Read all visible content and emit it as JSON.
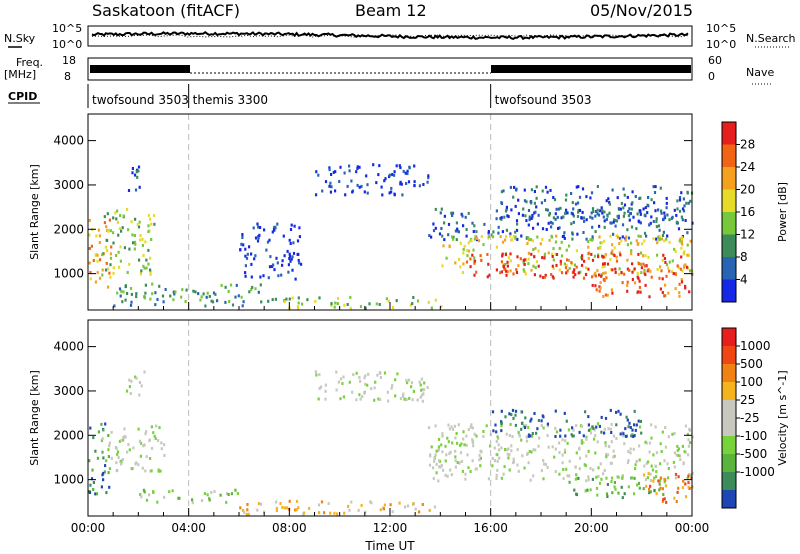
{
  "header": {
    "station": "Saskatoon (fitACF)",
    "beam": "Beam 12",
    "date": "05/Nov/2015"
  },
  "strip_labels": {
    "nsky": "N.Sky",
    "nsearch": "N.Search",
    "freq": "Freq.",
    "freq_unit": "[MHz]",
    "nave": "Nave",
    "cpid": "CPID",
    "nsky_top": "10^5",
    "nsky_bottom": "10^0",
    "nsearch_top": "10^5",
    "nsearch_bottom": "10^0",
    "freq_top": "18",
    "freq_bottom": "8",
    "nave_top": "60",
    "nave_bottom": "0"
  },
  "cpid_segments": [
    {
      "label": "twofsound 3503",
      "start_hour": 0,
      "end_hour": 4
    },
    {
      "label": "themis 3300",
      "start_hour": 4,
      "end_hour": 16
    },
    {
      "label": "twofsound 3503",
      "start_hour": 16,
      "end_hour": 24
    }
  ],
  "chart_data": [
    {
      "type": "heatmap",
      "panel": "power",
      "xlabel": "",
      "ylabel": "Slant Range [km]",
      "xlim": [
        0,
        24
      ],
      "ylim": [
        180,
        4600
      ],
      "yticks": [
        "1000",
        "2000",
        "3000",
        "4000"
      ],
      "xticks": [
        "00:00",
        "04:00",
        "08:00",
        "12:00",
        "16:00",
        "20:00",
        "00:00"
      ],
      "colorbar": {
        "label": "Power [dB]",
        "ticks": [
          "4",
          "8",
          "12",
          "16",
          "20",
          "24",
          "28"
        ],
        "colors": [
          "#1428e6",
          "#2864b4",
          "#3c8c5a",
          "#78c83c",
          "#e6dc28",
          "#f5a01e",
          "#f06414",
          "#e61e1e"
        ]
      },
      "regions": [
        {
          "t0": 0.0,
          "t1": 0.9,
          "r0": 700,
          "r1": 2300,
          "level": 5
        },
        {
          "t0": 0.5,
          "t1": 2.6,
          "r0": 1000,
          "r1": 2500,
          "level": 3
        },
        {
          "t0": 1.5,
          "t1": 2.2,
          "r0": 2900,
          "r1": 3500,
          "level": 1
        },
        {
          "t0": 1.0,
          "t1": 7.0,
          "r0": 300,
          "r1": 800,
          "level": 2
        },
        {
          "t0": 6.0,
          "t1": 8.5,
          "r0": 900,
          "r1": 2200,
          "level": 0
        },
        {
          "t0": 7.0,
          "t1": 14.0,
          "r0": 250,
          "r1": 500,
          "level": 3
        },
        {
          "t0": 9.0,
          "t1": 13.5,
          "r0": 2800,
          "r1": 3500,
          "level": 0
        },
        {
          "t0": 13.5,
          "t1": 24.0,
          "r0": 1800,
          "r1": 2500,
          "level": 1
        },
        {
          "t0": 14.0,
          "t1": 24.0,
          "r0": 1000,
          "r1": 1900,
          "level": 4
        },
        {
          "t0": 15.0,
          "t1": 24.0,
          "r0": 900,
          "r1": 1500,
          "level": 7
        },
        {
          "t0": 20.0,
          "t1": 24.0,
          "r0": 500,
          "r1": 900,
          "level": 6
        },
        {
          "t0": 16.0,
          "t1": 24.0,
          "r0": 2200,
          "r1": 3000,
          "level": 1
        }
      ]
    },
    {
      "type": "heatmap",
      "panel": "velocity",
      "xlabel": "Time UT",
      "ylabel": "Slant Range [km]",
      "xlim": [
        0,
        24
      ],
      "ylim": [
        180,
        4600
      ],
      "yticks": [
        "1000",
        "2000",
        "3000",
        "4000"
      ],
      "xticks": [
        "00:00",
        "04:00",
        "08:00",
        "12:00",
        "16:00",
        "20:00",
        "00:00"
      ],
      "colorbar": {
        "label": "Velocity [m s^-1]",
        "ticks": [
          "1000",
          "500",
          "100",
          "25",
          "-25",
          "-100",
          "-500",
          "-1000"
        ],
        "colors": [
          "#1e46b4",
          "#3c8c5a",
          "#5ab43c",
          "#78d23c",
          "#c8c8c0",
          "#c8c8c0",
          "#f5b41e",
          "#f08214",
          "#f04614",
          "#e61e1e"
        ]
      },
      "regions": [
        {
          "t0": 0.0,
          "t1": 0.8,
          "r0": 700,
          "r1": 2300,
          "level": 1
        },
        {
          "t0": 0.5,
          "t1": 3.0,
          "r0": 1200,
          "r1": 2300,
          "level": 4
        },
        {
          "t0": 1.5,
          "t1": 2.2,
          "r0": 2900,
          "r1": 3500,
          "level": 4
        },
        {
          "t0": 2.0,
          "t1": 6.0,
          "r0": 500,
          "r1": 800,
          "level": 3
        },
        {
          "t0": 6.0,
          "t1": 14.0,
          "r0": 250,
          "r1": 550,
          "level": 6
        },
        {
          "t0": 9.0,
          "t1": 13.5,
          "r0": 2800,
          "r1": 3500,
          "level": 4
        },
        {
          "t0": 13.5,
          "t1": 24.0,
          "r0": 1000,
          "r1": 2300,
          "level": 4
        },
        {
          "t0": 19.0,
          "t1": 23.0,
          "r0": 600,
          "r1": 1100,
          "level": 2
        },
        {
          "t0": 16.0,
          "t1": 22.0,
          "r0": 2000,
          "r1": 2600,
          "level": 0
        },
        {
          "t0": 22.0,
          "t1": 24.0,
          "r0": 500,
          "r1": 1200,
          "level": 7
        }
      ]
    }
  ]
}
